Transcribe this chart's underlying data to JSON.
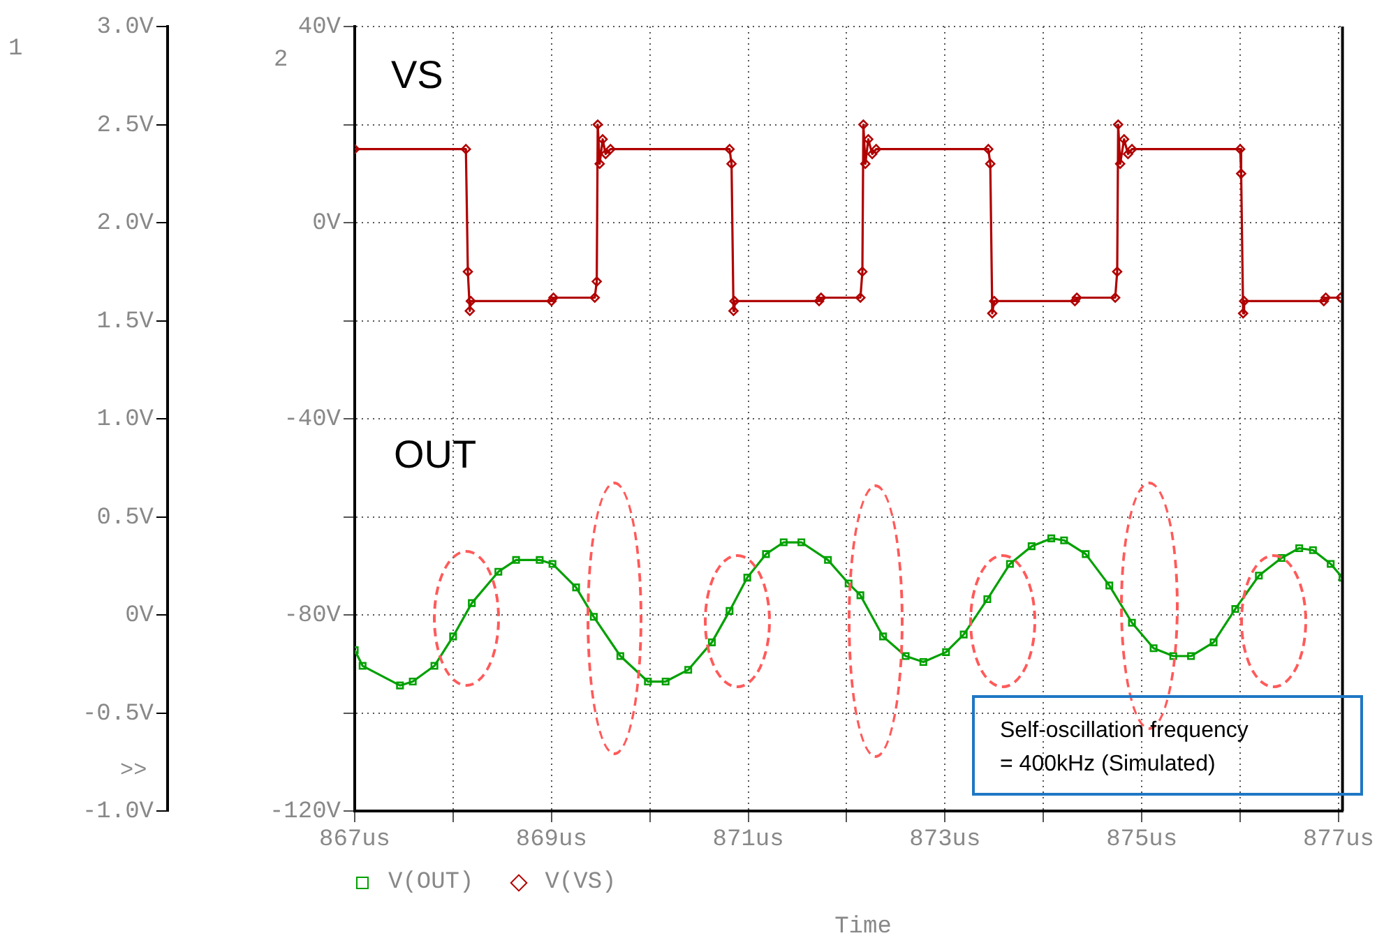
{
  "chart_data": {
    "type": "line",
    "xlabel": "Time",
    "ylabel": "1",
    "y2label": "2",
    "xlim": [
      867,
      877.04
    ],
    "xticks": [
      {
        "value": 867,
        "label": "867us"
      },
      {
        "value": 868,
        "label": null
      },
      {
        "value": 869,
        "label": "869us"
      },
      {
        "value": 870,
        "label": null
      },
      {
        "value": 871,
        "label": "871us"
      },
      {
        "value": 872,
        "label": null
      },
      {
        "value": 873,
        "label": "873us"
      },
      {
        "value": 874,
        "label": null
      },
      {
        "value": 875,
        "label": "875us"
      },
      {
        "value": 876,
        "label": null
      },
      {
        "value": 877,
        "label": "877us"
      }
    ],
    "ylim": [
      -1,
      3
    ],
    "yticks": [
      {
        "value": -1,
        "label": "-1.0V"
      },
      {
        "value": -0.5,
        "label": "-0.5V"
      },
      {
        "value": 0,
        "label": "0V"
      },
      {
        "value": 0.5,
        "label": "0.5V"
      },
      {
        "value": 1,
        "label": "1.0V"
      },
      {
        "value": 1.5,
        "label": "1.5V"
      },
      {
        "value": 2,
        "label": "2.0V"
      },
      {
        "value": 2.5,
        "label": "2.5V"
      },
      {
        "value": 3,
        "label": "3.0V"
      }
    ],
    "y2lim": [
      -120,
      40
    ],
    "y2ticks": [
      {
        "value": -120,
        "label": "-120V"
      },
      {
        "value": -100,
        "label": null
      },
      {
        "value": -80,
        "label": "-80V"
      },
      {
        "value": -60,
        "label": null
      },
      {
        "value": -40,
        "label": "-40V"
      },
      {
        "value": -20,
        "label": null
      },
      {
        "value": 0,
        "label": "0V"
      },
      {
        "value": 20,
        "label": null
      },
      {
        "value": 40,
        "label": "40V"
      }
    ],
    "grid": true,
    "legend": "bottom",
    "line_style": "solid",
    "annotations": [
      "VS",
      "OUT",
      ">>",
      "Self-oscillation frequency\n= 400kHz (Simulated)"
    ],
    "series": [
      {
        "name": "V(OUT)",
        "color": "#00a000",
        "marker": "square",
        "axis": "y",
        "x": [
          867.0,
          867.08,
          867.46,
          867.59,
          867.81,
          868.0,
          868.19,
          868.46,
          868.64,
          868.88,
          869.01,
          869.25,
          869.43,
          869.7,
          869.98,
          870.16,
          870.39,
          870.63,
          870.81,
          870.99,
          871.18,
          871.36,
          871.54,
          871.81,
          872.02,
          872.14,
          872.37,
          872.6,
          872.78,
          873.01,
          873.19,
          873.43,
          873.66,
          873.88,
          874.08,
          874.21,
          874.43,
          874.67,
          874.9,
          875.12,
          875.32,
          875.5,
          875.73,
          875.95,
          876.19,
          876.42,
          876.6,
          876.74,
          876.92,
          877.04
        ],
        "values": [
          -0.18,
          -0.26,
          -0.36,
          -0.34,
          -0.26,
          -0.11,
          0.06,
          0.22,
          0.28,
          0.28,
          0.26,
          0.14,
          -0.01,
          -0.21,
          -0.34,
          -0.34,
          -0.28,
          -0.14,
          0.02,
          0.19,
          0.31,
          0.37,
          0.37,
          0.28,
          0.16,
          0.1,
          -0.11,
          -0.21,
          -0.24,
          -0.19,
          -0.1,
          0.08,
          0.26,
          0.35,
          0.39,
          0.38,
          0.31,
          0.15,
          -0.04,
          -0.17,
          -0.21,
          -0.21,
          -0.14,
          0.03,
          0.2,
          0.29,
          0.34,
          0.33,
          0.26,
          0.19
        ]
      },
      {
        "name": "V(VS)",
        "color": "#b00000",
        "marker": "diamond",
        "axis": "y2",
        "x": [
          867.0,
          868.13,
          868.15,
          868.17,
          868.18,
          869.0,
          869.02,
          869.44,
          869.46,
          869.47,
          869.49,
          869.52,
          869.55,
          869.6,
          870.81,
          870.83,
          870.85,
          870.86,
          871.72,
          871.74,
          872.14,
          872.16,
          872.17,
          872.19,
          872.22,
          872.26,
          872.3,
          873.44,
          873.46,
          873.48,
          873.5,
          874.32,
          874.34,
          874.73,
          874.75,
          874.76,
          874.78,
          874.82,
          874.86,
          874.9,
          876.0,
          876.01,
          876.03,
          876.04,
          876.85,
          876.87,
          877.02
        ],
        "values": [
          15,
          15,
          -10,
          -18,
          -16,
          -16,
          -15.3,
          -15.3,
          -12,
          20,
          12,
          17,
          14,
          15,
          15,
          12,
          -18,
          -16,
          -16,
          -15.3,
          -15.3,
          -10,
          20,
          12,
          17,
          14,
          15,
          15,
          12,
          -18.5,
          -16,
          -16,
          -15.3,
          -15.3,
          -10,
          20,
          12,
          17,
          14,
          15,
          15,
          10,
          -18.5,
          -16,
          -16,
          -15.3,
          -15.3
        ]
      }
    ]
  }
}
